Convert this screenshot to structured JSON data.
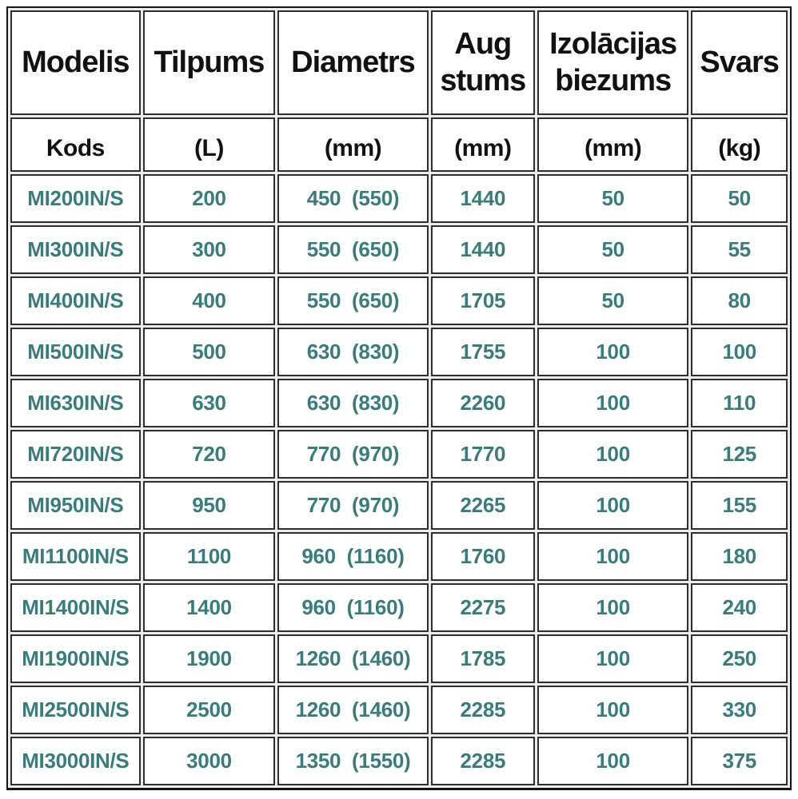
{
  "colors": {
    "header_text": "#111111",
    "value_text": "#377d7c",
    "cell_border": "#2e2e2e",
    "outer_border": "#141414",
    "grid_gap": "#ececec",
    "cell_background": "#ffffff"
  },
  "table": {
    "header_row1": [
      "Modelis",
      "Tilpums",
      "Diametrs",
      "Aug\nstums",
      "Izolācijas\nbiezums",
      "Svars"
    ],
    "header_row2": [
      "Kods",
      "(L)",
      "(mm)",
      "(mm)",
      "(mm)",
      "(kg)"
    ],
    "rows": [
      [
        "MI200IN/S",
        "200",
        "450  (550)",
        "1440",
        "50",
        "50"
      ],
      [
        "MI300IN/S",
        "300",
        "550  (650)",
        "1440",
        "50",
        "55"
      ],
      [
        "MI400IN/S",
        "400",
        "550  (650)",
        "1705",
        "50",
        "80"
      ],
      [
        "MI500IN/S",
        "500",
        "630  (830)",
        "1755",
        "100",
        "100"
      ],
      [
        "MI630IN/S",
        "630",
        "630  (830)",
        "2260",
        "100",
        "110"
      ],
      [
        "MI720IN/S",
        "720",
        "770  (970)",
        "1770",
        "100",
        "125"
      ],
      [
        "MI950IN/S",
        "950",
        "770  (970)",
        "2265",
        "100",
        "155"
      ],
      [
        "MI1100IN/S",
        "1100",
        "960  (1160)",
        "1760",
        "100",
        "180"
      ],
      [
        "MI1400IN/S",
        "1400",
        "960  (1160)",
        "2275",
        "100",
        "240"
      ],
      [
        "MI1900IN/S",
        "1900",
        "1260  (1460)",
        "1785",
        "100",
        "250"
      ],
      [
        "MI2500IN/S",
        "2500",
        "1260  (1460)",
        "2285",
        "100",
        "330"
      ],
      [
        "MI3000IN/S",
        "3000",
        "1350  (1550)",
        "2285",
        "100",
        "375"
      ]
    ]
  }
}
